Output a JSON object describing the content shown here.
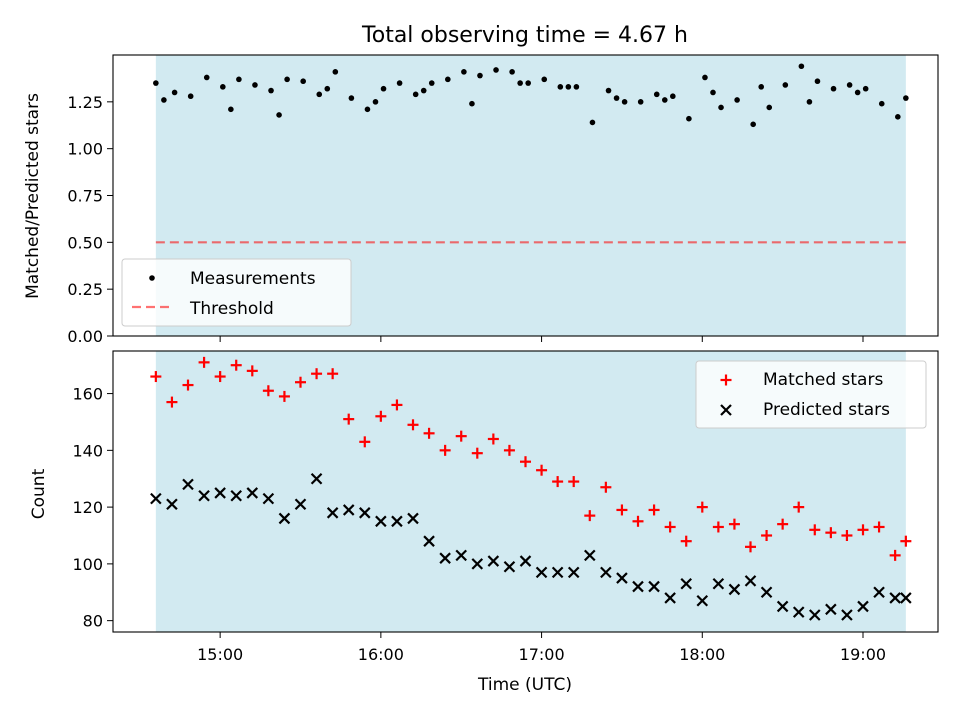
{
  "title": "Total observing time = 4.67 h",
  "xlabel": "Time (UTC)",
  "x_ticks": [
    "15:00",
    "16:00",
    "17:00",
    "18:00",
    "19:00"
  ],
  "colors": {
    "shade": "#add8e6",
    "matched": "#ff0000",
    "predicted": "#000000",
    "measurements": "#000000",
    "threshold": "#ff0000"
  },
  "chart_data": [
    {
      "type": "scatter",
      "panel": "top",
      "title": "Total observing time = 4.67 h",
      "xlabel": "",
      "ylabel": "Matched/Predicted stars",
      "xlim": [
        "14:20",
        "19:28"
      ],
      "ylim": [
        0,
        1.5
      ],
      "y_ticks": [
        "0.00",
        "0.25",
        "0.50",
        "0.75",
        "1.00",
        "1.25"
      ],
      "y_tick_values": [
        0,
        0.25,
        0.5,
        0.75,
        1.0,
        1.25
      ],
      "shaded_span": [
        "14:36",
        "19:16"
      ],
      "legend_location": "lower left",
      "legend": [
        "Measurements",
        "Threshold"
      ],
      "threshold": {
        "name": "Threshold",
        "value": 0.5,
        "x_start": "14:36",
        "x_end": "19:16"
      },
      "series": [
        {
          "name": "Measurements",
          "marker": "dot",
          "x": [
            "14:36",
            "14:43",
            "14:49",
            "14:55",
            "15:01",
            "15:07",
            "15:13",
            "15:19",
            "15:25",
            "15:31",
            "15:37",
            "15:43",
            "15:49",
            "15:55",
            "16:01",
            "16:07",
            "16:13",
            "16:19",
            "16:25",
            "16:31",
            "16:37",
            "16:43",
            "16:49",
            "16:55",
            "17:01",
            "17:07",
            "17:13",
            "17:19",
            "17:25",
            "17:31",
            "17:37",
            "17:43",
            "17:49",
            "17:55",
            "18:01",
            "18:07",
            "18:13",
            "18:19",
            "18:25",
            "18:31",
            "18:37",
            "18:43",
            "18:49",
            "18:55",
            "19:01",
            "19:07",
            "19:13",
            "19:16",
            "14:39",
            "15:04",
            "15:22",
            "15:40",
            "15:58",
            "16:16",
            "16:34",
            "16:52",
            "17:10",
            "17:28",
            "17:46",
            "18:04",
            "18:22",
            "18:40",
            "18:58"
          ],
          "values": [
            1.35,
            1.3,
            1.28,
            1.38,
            1.33,
            1.37,
            1.34,
            1.31,
            1.37,
            1.36,
            1.29,
            1.41,
            1.27,
            1.21,
            1.32,
            1.35,
            1.29,
            1.35,
            1.37,
            1.41,
            1.39,
            1.42,
            1.41,
            1.35,
            1.37,
            1.33,
            1.33,
            1.14,
            1.31,
            1.25,
            1.25,
            1.29,
            1.28,
            1.16,
            1.38,
            1.22,
            1.26,
            1.13,
            1.22,
            1.34,
            1.44,
            1.36,
            1.32,
            1.34,
            1.32,
            1.24,
            1.17,
            1.27,
            1.26,
            1.21,
            1.18,
            1.32,
            1.25,
            1.31,
            1.24,
            1.35,
            1.33,
            1.27,
            1.26,
            1.3,
            1.33,
            1.25,
            1.3
          ]
        }
      ]
    },
    {
      "type": "scatter",
      "panel": "bottom",
      "xlabel": "Time (UTC)",
      "ylabel": "Count",
      "xlim": [
        "14:20",
        "19:28"
      ],
      "ylim": [
        76,
        175
      ],
      "y_ticks": [
        "80",
        "100",
        "120",
        "140",
        "160"
      ],
      "y_tick_values": [
        80,
        100,
        120,
        140,
        160
      ],
      "shaded_span": [
        "14:36",
        "19:16"
      ],
      "legend_location": "upper right",
      "series": [
        {
          "name": "Matched stars",
          "marker": "+",
          "x": [
            "14:36",
            "14:42",
            "14:48",
            "14:54",
            "15:00",
            "15:06",
            "15:12",
            "15:18",
            "15:24",
            "15:30",
            "15:36",
            "15:42",
            "15:48",
            "15:54",
            "16:00",
            "16:06",
            "16:12",
            "16:18",
            "16:24",
            "16:30",
            "16:36",
            "16:42",
            "16:48",
            "16:54",
            "17:00",
            "17:06",
            "17:12",
            "17:18",
            "17:24",
            "17:30",
            "17:36",
            "17:42",
            "17:48",
            "17:54",
            "18:00",
            "18:06",
            "18:12",
            "18:18",
            "18:24",
            "18:30",
            "18:36",
            "18:42",
            "18:48",
            "18:54",
            "19:00",
            "19:06",
            "19:12",
            "19:16"
          ],
          "values": [
            166,
            157,
            163,
            171,
            166,
            170,
            168,
            161,
            159,
            164,
            167,
            167,
            151,
            143,
            152,
            156,
            149,
            146,
            140,
            145,
            139,
            144,
            140,
            136,
            133,
            129,
            129,
            117,
            127,
            119,
            115,
            119,
            113,
            108,
            120,
            113,
            114,
            106,
            110,
            114,
            120,
            112,
            111,
            110,
            112,
            113,
            103,
            108
          ]
        },
        {
          "name": "Predicted stars",
          "marker": "x",
          "x": [
            "14:36",
            "14:42",
            "14:48",
            "14:54",
            "15:00",
            "15:06",
            "15:12",
            "15:18",
            "15:24",
            "15:30",
            "15:36",
            "15:42",
            "15:48",
            "15:54",
            "16:00",
            "16:06",
            "16:12",
            "16:18",
            "16:24",
            "16:30",
            "16:36",
            "16:42",
            "16:48",
            "16:54",
            "17:00",
            "17:06",
            "17:12",
            "17:18",
            "17:24",
            "17:30",
            "17:36",
            "17:42",
            "17:48",
            "17:54",
            "18:00",
            "18:06",
            "18:12",
            "18:18",
            "18:24",
            "18:30",
            "18:36",
            "18:42",
            "18:48",
            "18:54",
            "19:00",
            "19:06",
            "19:12",
            "19:16"
          ],
          "values": [
            123,
            121,
            128,
            124,
            125,
            124,
            125,
            123,
            116,
            121,
            130,
            118,
            119,
            118,
            115,
            115,
            116,
            108,
            102,
            103,
            100,
            101,
            99,
            101,
            97,
            97,
            97,
            103,
            97,
            95,
            92,
            92,
            88,
            93,
            87,
            93,
            91,
            94,
            90,
            85,
            83,
            82,
            84,
            82,
            85,
            90,
            88,
            88
          ]
        }
      ]
    }
  ]
}
